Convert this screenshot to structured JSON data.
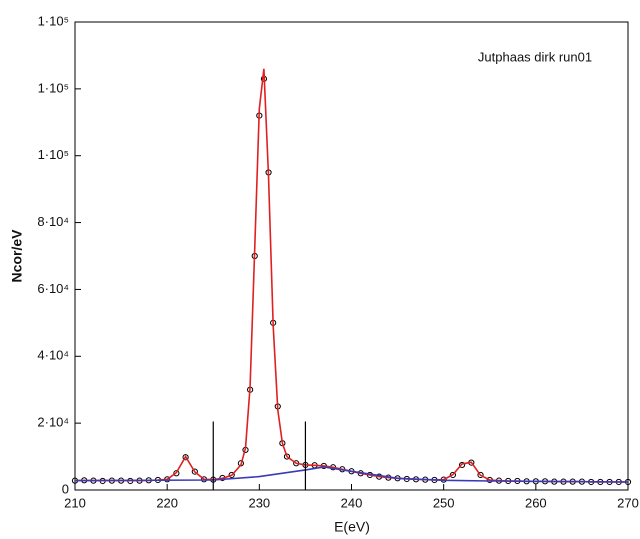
{
  "chart_data": {
    "type": "line",
    "annotation": "Jutphaas dirk run01",
    "x_label": "E(eV)",
    "y_label": "Ncor/eV",
    "xlim": [
      210,
      270
    ],
    "xticks": [
      210,
      220,
      230,
      240,
      250,
      260,
      270
    ],
    "ylim": [
      0,
      140000
    ],
    "yticks": [
      0,
      {
        "value": 20000,
        "label": "2·10⁴"
      },
      {
        "value": 40000,
        "label": "4·10⁴"
      },
      {
        "value": 60000,
        "label": "6·10⁴"
      },
      {
        "value": 80000,
        "label": "8·10⁴"
      },
      {
        "value": 100000,
        "label": "1·10⁵"
      },
      {
        "value": 120000,
        "label": "1·10⁵"
      },
      {
        "value": 140000,
        "label": "1·10⁵"
      }
    ],
    "series": [
      {
        "style": "markers",
        "color": "#000000",
        "x": [
          210,
          211,
          212,
          213,
          214,
          215,
          216,
          217,
          218,
          219,
          220,
          221,
          222,
          223,
          224,
          225,
          226,
          227,
          228,
          228.5,
          229,
          229.5,
          230,
          230.5,
          231,
          231.5,
          232,
          232.5,
          233,
          234,
          235,
          236,
          237,
          238,
          239,
          240,
          241,
          242,
          243,
          244,
          245,
          246,
          247,
          248,
          249,
          250,
          251,
          252,
          253,
          254,
          255,
          256,
          257,
          258,
          259,
          260,
          261,
          262,
          263,
          264,
          265,
          266,
          267,
          268,
          269,
          270
        ],
        "values": [
          2800,
          2900,
          2800,
          2700,
          2800,
          2800,
          2700,
          2800,
          2900,
          3000,
          3200,
          5000,
          9800,
          5500,
          3200,
          3100,
          3600,
          4500,
          8000,
          12000,
          30000,
          70000,
          112000,
          123000,
          95000,
          50000,
          25000,
          14000,
          10000,
          8000,
          7500,
          7400,
          7200,
          6800,
          6200,
          5600,
          5000,
          4500,
          4000,
          3700,
          3500,
          3300,
          3200,
          3100,
          3000,
          3100,
          4500,
          7500,
          8200,
          4500,
          3000,
          2800,
          2700,
          2700,
          2600,
          2600,
          2600,
          2500,
          2500,
          2500,
          2500,
          2400,
          2400,
          2400,
          2400,
          2400
        ]
      },
      {
        "style": "line",
        "color": "#e02020",
        "x": [
          210,
          211,
          212,
          213,
          214,
          215,
          216,
          217,
          218,
          219,
          220,
          221,
          222,
          223,
          224,
          225,
          226,
          227,
          228,
          228.5,
          229,
          229.5,
          230,
          230.5,
          231,
          231.5,
          232,
          232.5,
          233,
          234,
          235,
          236,
          237,
          238,
          239,
          240,
          241,
          242,
          243,
          244,
          245,
          246,
          247,
          248,
          249,
          250,
          251,
          252,
          253,
          254,
          255,
          256,
          257,
          258,
          259,
          260,
          261,
          262,
          263,
          264,
          265,
          266,
          267,
          268,
          269,
          270
        ],
        "values": [
          2800,
          2800,
          2800,
          2800,
          2800,
          2800,
          2800,
          2800,
          2850,
          2950,
          3200,
          5200,
          10000,
          5400,
          3200,
          3100,
          3500,
          4400,
          7500,
          12500,
          31000,
          72000,
          114000,
          126000,
          94000,
          49000,
          24000,
          14000,
          10000,
          8000,
          7500,
          7400,
          7200,
          6800,
          6200,
          5600,
          5000,
          4500,
          4000,
          3700,
          3500,
          3300,
          3200,
          3100,
          3000,
          3100,
          4600,
          7800,
          8300,
          4400,
          3000,
          2800,
          2700,
          2700,
          2600,
          2600,
          2600,
          2500,
          2500,
          2500,
          2500,
          2400,
          2400,
          2400,
          2400,
          2400
        ]
      },
      {
        "style": "line",
        "color": "#3a3ab8",
        "x": [
          210,
          225,
          230,
          235,
          237,
          240,
          245,
          250,
          255,
          260,
          270
        ],
        "values": [
          2800,
          3000,
          4000,
          6000,
          6900,
          5600,
          3500,
          2900,
          2700,
          2600,
          2400
        ]
      }
    ],
    "markers": [
      {
        "x": 225,
        "y": 20500
      },
      {
        "x": 235,
        "y": 20500
      }
    ]
  }
}
